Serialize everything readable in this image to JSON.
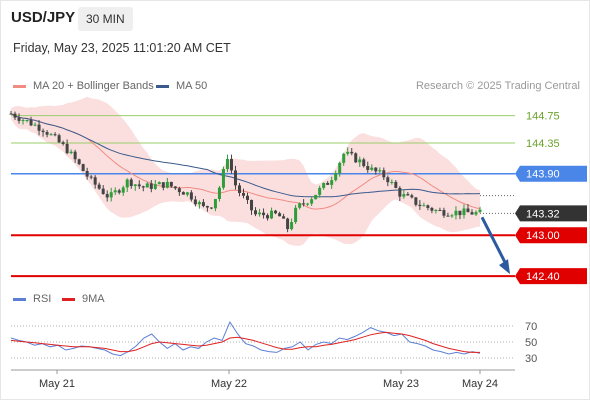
{
  "header": {
    "symbol": "USD/JPY",
    "timeframe": "30 MIN",
    "datetime": "Friday, May 23, 2025 11:01:20 AM CET"
  },
  "legend": {
    "ma20": "MA 20 + Bollinger Bands",
    "ma50": "MA 50",
    "credit": "Research © 2025 Trading Central",
    "rsi": "RSI",
    "ma9": "9MA"
  },
  "colors": {
    "ma20": "#f28b82",
    "ma50": "#3a5a8c",
    "rsi": "#5b7fd6",
    "ma9": "#e02020",
    "up_candle": "#2e9e3a",
    "down_candle": "#444444",
    "bands_fill": "#fbdcdc",
    "resistance": "#9acd6a",
    "pivot": "#4a86e8",
    "support": "#e00000",
    "last_price_tag": "#333333",
    "arrow": "#2c5aa0"
  },
  "levels": {
    "r2": "144.75",
    "r1": "144.35",
    "pivot": "143.90",
    "last": "143.32",
    "s1": "143.00",
    "s2": "142.40"
  },
  "chart_data": [
    {
      "type": "candlestick",
      "title": "USD/JPY 30 MIN",
      "x_ticks": [
        "May 21",
        "May 22",
        "May 23",
        "May 24"
      ],
      "ylim": [
        142.3,
        144.95
      ],
      "horizontal_levels": [
        144.75,
        144.35,
        143.9,
        143.32,
        143.0,
        142.4
      ],
      "projection": {
        "from": 143.32,
        "to": 142.4,
        "direction": "down"
      },
      "price_path": [
        {
          "t": 0.0,
          "p": 144.78
        },
        {
          "t": 0.07,
          "p": 144.55
        },
        {
          "t": 0.12,
          "p": 144.25
        },
        {
          "t": 0.17,
          "p": 143.8
        },
        {
          "t": 0.21,
          "p": 143.55
        },
        {
          "t": 0.25,
          "p": 143.8
        },
        {
          "t": 0.28,
          "p": 143.7
        },
        {
          "t": 0.33,
          "p": 143.75
        },
        {
          "t": 0.38,
          "p": 143.6
        },
        {
          "t": 0.41,
          "p": 143.4
        },
        {
          "t": 0.43,
          "p": 143.45
        },
        {
          "t": 0.45,
          "p": 143.8
        },
        {
          "t": 0.46,
          "p": 144.2
        },
        {
          "t": 0.48,
          "p": 143.7
        },
        {
          "t": 0.52,
          "p": 143.3
        },
        {
          "t": 0.57,
          "p": 143.3
        },
        {
          "t": 0.59,
          "p": 143.1
        },
        {
          "t": 0.61,
          "p": 143.4
        },
        {
          "t": 0.64,
          "p": 143.55
        },
        {
          "t": 0.68,
          "p": 143.8
        },
        {
          "t": 0.71,
          "p": 144.2
        },
        {
          "t": 0.74,
          "p": 144.1
        },
        {
          "t": 0.77,
          "p": 143.95
        },
        {
          "t": 0.8,
          "p": 143.85
        },
        {
          "t": 0.83,
          "p": 143.6
        },
        {
          "t": 0.87,
          "p": 143.45
        },
        {
          "t": 0.91,
          "p": 143.35
        },
        {
          "t": 1.0,
          "p": 143.32
        }
      ]
    },
    {
      "type": "line",
      "title": "RSI",
      "y_ticks": [
        "70",
        "50",
        "30"
      ],
      "ylim": [
        20,
        80
      ],
      "series": [
        {
          "name": "RSI",
          "values": [
            55,
            52,
            50,
            46,
            48,
            44,
            46,
            40,
            42,
            45,
            44,
            42,
            40,
            35,
            33,
            38,
            45,
            55,
            60,
            50,
            42,
            48,
            40,
            44,
            42,
            50,
            55,
            52,
            75,
            60,
            48,
            45,
            40,
            38,
            37,
            42,
            44,
            50,
            40,
            47,
            50,
            48,
            55,
            53,
            57,
            62,
            68,
            64,
            62,
            58,
            60,
            50,
            48,
            45,
            40,
            38,
            35,
            37,
            35,
            38,
            36
          ]
        },
        {
          "name": "9MA",
          "values": [
            52,
            51,
            50,
            49,
            48,
            47,
            46,
            45,
            44,
            44,
            44,
            43,
            42,
            40,
            38,
            38,
            40,
            44,
            48,
            50,
            49,
            48,
            47,
            46,
            45,
            46,
            48,
            50,
            55,
            56,
            54,
            52,
            49,
            46,
            43,
            41,
            41,
            43,
            44,
            44,
            46,
            47,
            49,
            51,
            53,
            56,
            59,
            61,
            62,
            61,
            60,
            58,
            55,
            52,
            48,
            45,
            42,
            40,
            38,
            37,
            37
          ]
        }
      ]
    }
  ]
}
